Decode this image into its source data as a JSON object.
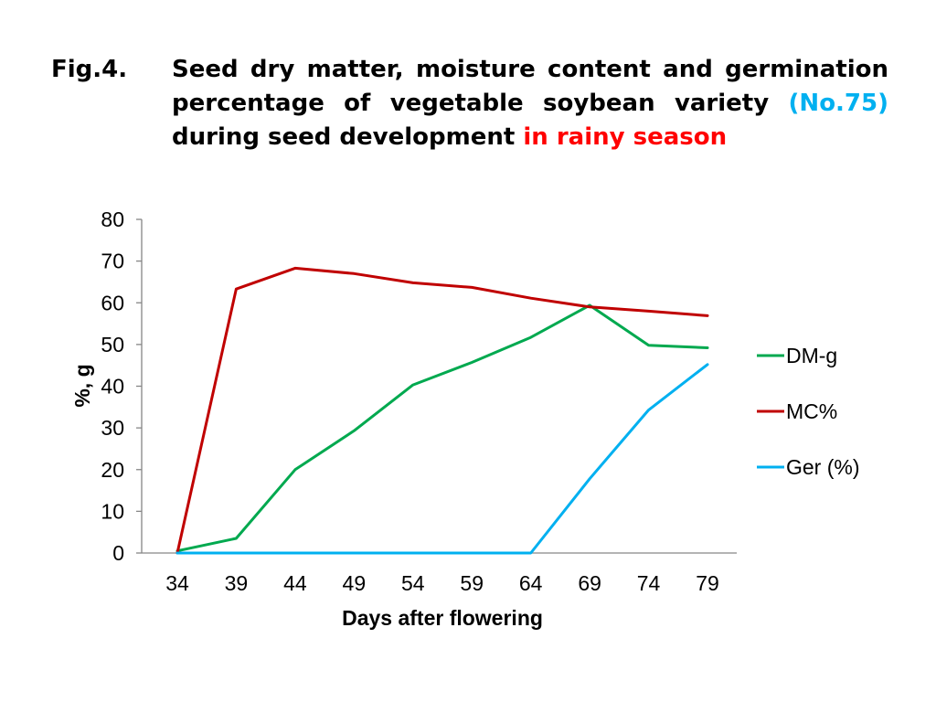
{
  "figure": {
    "label": "Fig.4.",
    "title_part1": "Seed dry matter, moisture content and germination percentage of vegetable soybean variety",
    "title_highlight1": "(No.75)",
    "title_part2": "during seed development",
    "title_highlight2": "in rainy season",
    "highlight1_color": "#00b0f0",
    "highlight2_color": "#ff0000"
  },
  "chart_data": {
    "type": "line",
    "title": "",
    "xlabel": "Days after flowering",
    "ylabel": "%, g",
    "x": [
      34,
      39,
      44,
      49,
      54,
      59,
      64,
      69,
      74,
      79
    ],
    "ylim": [
      0,
      80
    ],
    "yticks": [
      0,
      10,
      20,
      30,
      40,
      50,
      60,
      70,
      80
    ],
    "grid": false,
    "legend_position": "right",
    "series": [
      {
        "name": "DM-g",
        "color": "#00a94f",
        "values": [
          0.5,
          3.5,
          20,
          29.3,
          40.3,
          45.7,
          51.7,
          59.4,
          49.8,
          49.2
        ]
      },
      {
        "name": "MC%",
        "color": "#c00000",
        "values": [
          0,
          63.3,
          68.3,
          67,
          64.8,
          63.7,
          61.1,
          59,
          58,
          56.9
        ]
      },
      {
        "name": "Ger (%)",
        "color": "#00b0f0",
        "values": [
          0,
          0,
          0,
          0,
          0,
          0,
          0,
          17.8,
          34.3,
          45.2
        ]
      }
    ]
  }
}
